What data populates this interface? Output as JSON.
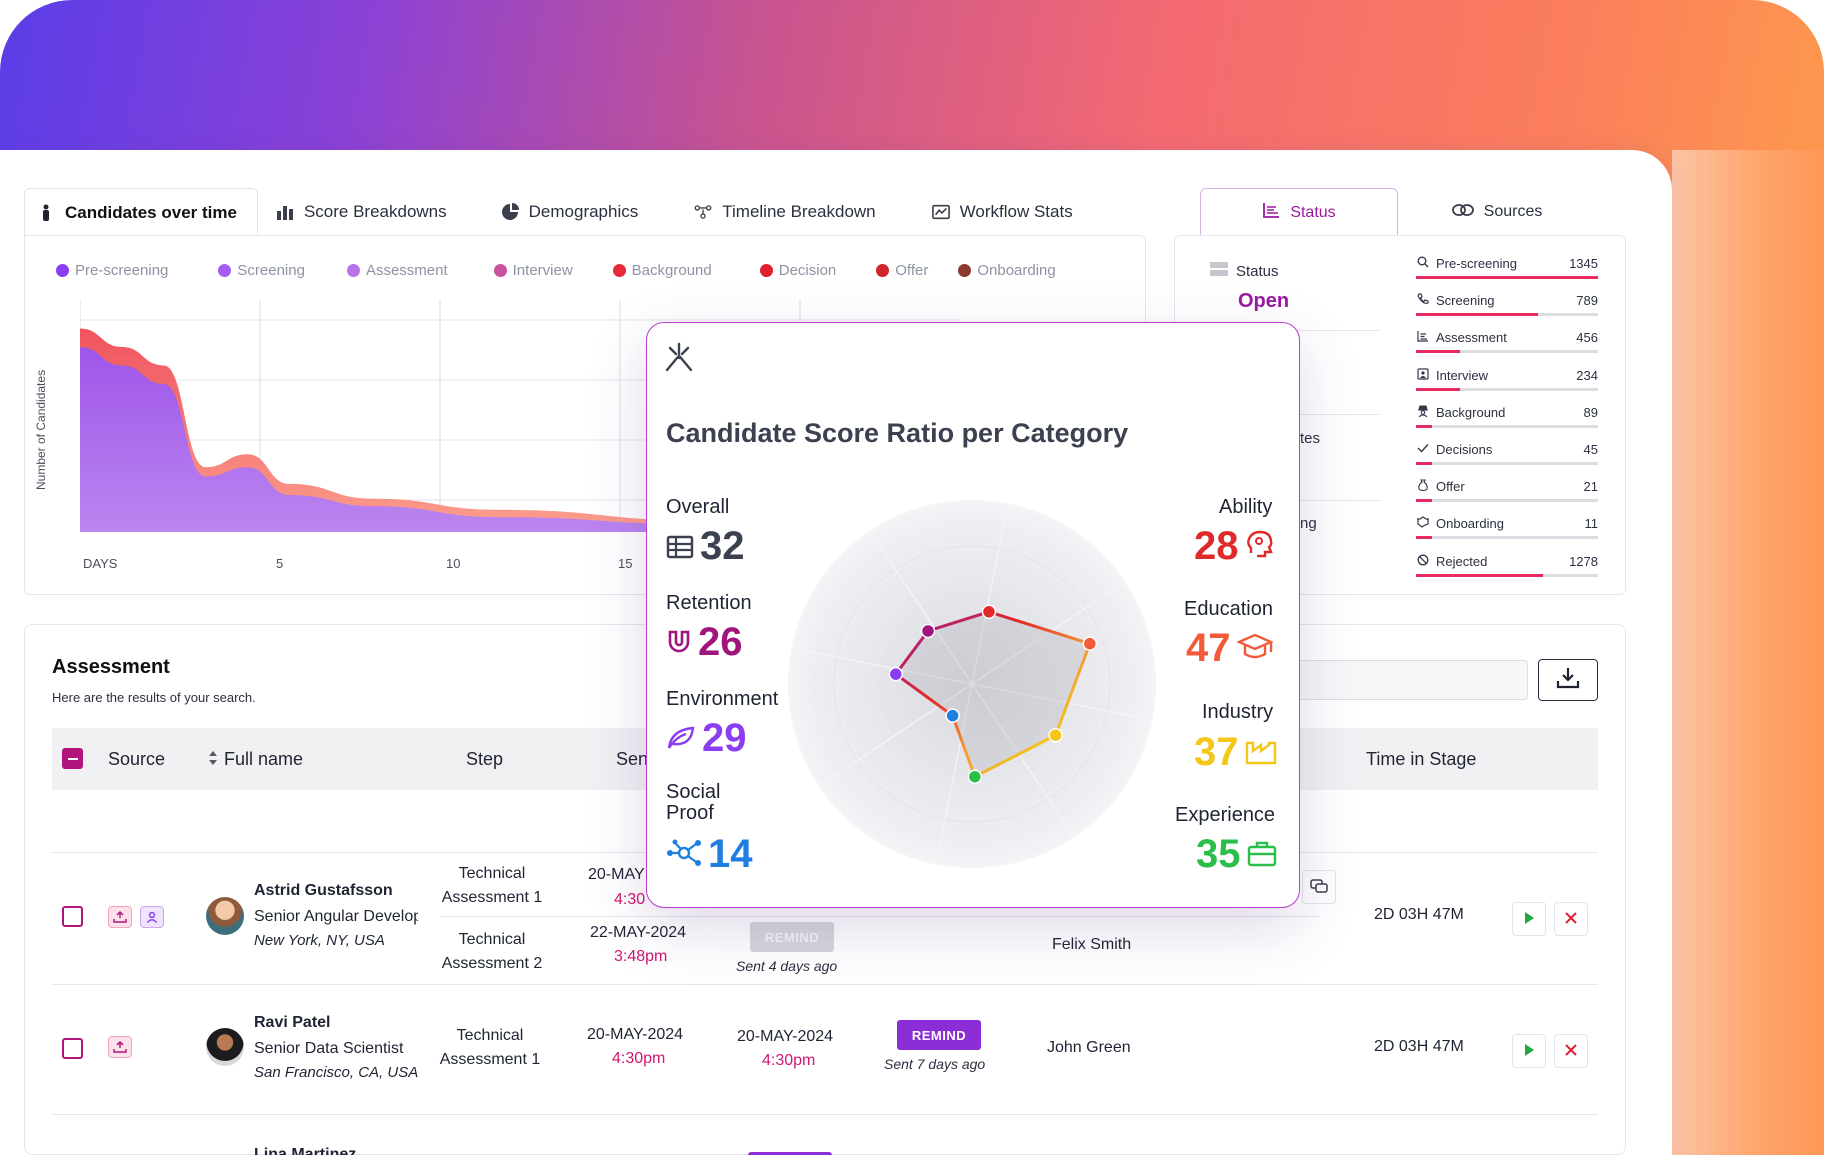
{
  "tabs": [
    {
      "label": "Candidates over time",
      "icon": "person-icon"
    },
    {
      "label": "Score Breakdowns",
      "icon": "bar-chart-icon"
    },
    {
      "label": "Demographics",
      "icon": "pie-chart-icon"
    },
    {
      "label": "Timeline Breakdown",
      "icon": "timeline-icon"
    },
    {
      "label": "Workflow Stats",
      "icon": "workflow-icon"
    }
  ],
  "chart": {
    "ylabel": "Number of Candidates",
    "xticks": [
      "DAYS",
      "5",
      "10",
      "15"
    ],
    "legend": [
      {
        "label": "Pre-screening",
        "color": "#8a3ef0"
      },
      {
        "label": "Screening",
        "color": "#a65ef2"
      },
      {
        "label": "Assessment",
        "color": "#b872e8"
      },
      {
        "label": "Interview",
        "color": "#c9539d"
      },
      {
        "label": "Background",
        "color": "#e52b3a"
      },
      {
        "label": "Decision",
        "color": "#e0202c"
      },
      {
        "label": "Offer",
        "color": "#d0232c"
      },
      {
        "label": "Onboarding",
        "color": "#8a3a2f"
      }
    ]
  },
  "chart_data": {
    "type": "area",
    "title": "",
    "xlabel": "DAYS",
    "ylabel": "Number of Candidates",
    "x": [
      0,
      1,
      2,
      3,
      4,
      5,
      7,
      10,
      15,
      21
    ],
    "series": [
      {
        "name": "Pre-screening",
        "values": [
          1000,
          900,
          800,
          300,
          350,
          200,
          140,
          80,
          40,
          20
        ]
      },
      {
        "name": "Background",
        "values": [
          1100,
          1000,
          900,
          350,
          420,
          260,
          180,
          120,
          60,
          30
        ]
      }
    ],
    "ylim": [
      0,
      1200
    ]
  },
  "status_tabs": [
    {
      "label": "Status",
      "icon": "list-icon"
    },
    {
      "label": "Sources",
      "icon": "link-icon"
    }
  ],
  "status": {
    "label": "Status",
    "value": "Open",
    "partial_1": "tes",
    "partial_2": "ng"
  },
  "stages": [
    {
      "name": "Pre-screening",
      "count": "1345",
      "fill": 1.0,
      "icon": "search-icon"
    },
    {
      "name": "Screening",
      "count": "789",
      "fill": 0.67,
      "icon": "phone-icon"
    },
    {
      "name": "Assessment",
      "count": "456",
      "fill": 0.24,
      "icon": "chart-icon"
    },
    {
      "name": "Interview",
      "count": "234",
      "fill": 0.24,
      "icon": "interview-icon"
    },
    {
      "name": "Background",
      "count": "89",
      "fill": 0.09,
      "icon": "detective-icon"
    },
    {
      "name": "Decisions",
      "count": "45",
      "fill": 0.09,
      "icon": "check-icon"
    },
    {
      "name": "Offer",
      "count": "21",
      "fill": 0.09,
      "icon": "money-bag-icon"
    },
    {
      "name": "Onboarding",
      "count": "11",
      "fill": 0.09,
      "icon": "handshake-icon"
    },
    {
      "name": "Rejected",
      "count": "1278",
      "fill": 0.7,
      "icon": "ban-icon"
    }
  ],
  "assessment": {
    "title": "Assessment",
    "subtitle": "Here are the results of your search.",
    "columns": {
      "source": "Source",
      "full_name": "Full name",
      "step": "Step",
      "sent": "Sen",
      "time_in_stage": "Time in Stage"
    },
    "rows": [
      {
        "name": "Astrid Gustafsson",
        "role": "Senior Angular Developer",
        "location": "New York, NY, USA",
        "step_1": "Technical Assessment 1",
        "date_1": "20-MAY",
        "time_1": "4:30",
        "step_2": "Technical Assessment 2",
        "date_2": "22-MAY-2024",
        "time_2": "3:48pm",
        "remind": "REMIND",
        "sent": "Sent 4 days ago",
        "assignee": "Felix Smith",
        "time_in_stage": "2D 03H 47M"
      },
      {
        "name": "Ravi Patel",
        "role": "Senior Data Scientist",
        "location": "San Francisco, CA, USA",
        "step_1": "Technical Assessment 1",
        "date_1": "20-MAY-2024",
        "time_1": "4:30pm",
        "sent_date": "20-MAY-2024",
        "sent_time": "4:30pm",
        "remind": "REMIND",
        "sent": "Sent 7 days ago",
        "assignee": "John Green",
        "time_in_stage": "2D 03H 47M"
      },
      {
        "name": "Lina Martinez"
      }
    ]
  },
  "popup": {
    "title": "Candidate Score Ratio per Category",
    "metrics": [
      {
        "label": "Overall",
        "value": "32",
        "color": "#3c4150",
        "icon": "table-icon"
      },
      {
        "label": "Retention",
        "value": "26",
        "color": "#a0157d",
        "icon": "magnet-icon"
      },
      {
        "label": "Environment",
        "value": "29",
        "color": "#8b3df0",
        "icon": "leaf-icon"
      },
      {
        "label": "Social Proof",
        "value": "14",
        "color": "#1f7fe0",
        "icon": "network-icon"
      },
      {
        "label": "Ability",
        "value": "28",
        "color": "#e02a2a",
        "icon": "brain-icon"
      },
      {
        "label": "Education",
        "value": "47",
        "color": "#f35a3a",
        "icon": "graduation-cap-icon"
      },
      {
        "label": "Industry",
        "value": "37",
        "color": "#f5c61a",
        "icon": "factory-icon"
      },
      {
        "label": "Experience",
        "value": "35",
        "color": "#2bbf4a",
        "icon": "briefcase-icon"
      }
    ]
  }
}
